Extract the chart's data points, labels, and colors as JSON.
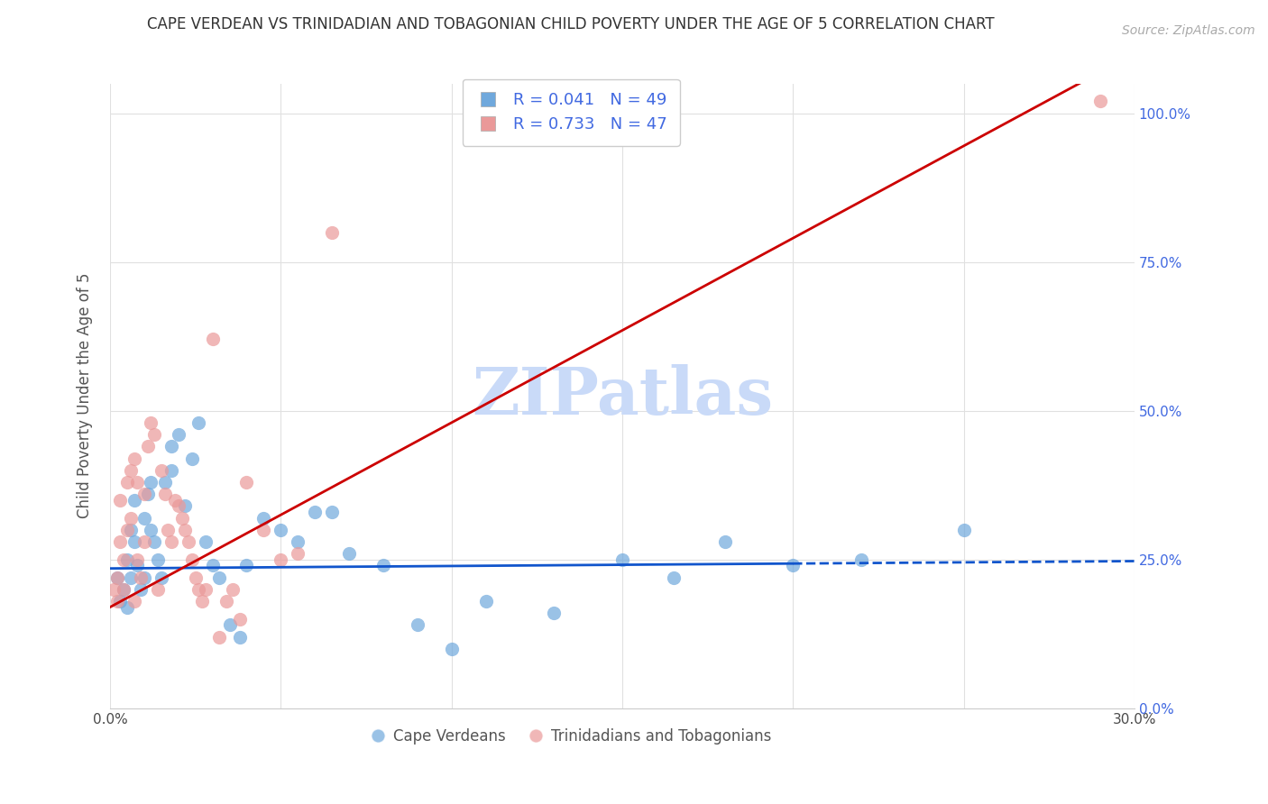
{
  "title": "CAPE VERDEAN VS TRINIDADIAN AND TOBAGONIAN CHILD POVERTY UNDER THE AGE OF 5 CORRELATION CHART",
  "source": "Source: ZipAtlas.com",
  "xlabel_bottom": "",
  "ylabel": "Child Poverty Under the Age of 5",
  "x_min": 0.0,
  "x_max": 0.3,
  "y_min": 0.0,
  "y_max": 1.05,
  "x_ticks": [
    0.0,
    0.05,
    0.1,
    0.15,
    0.2,
    0.25,
    0.3
  ],
  "x_tick_labels": [
    "0.0%",
    "",
    "",
    "",
    "",
    "",
    "30.0%"
  ],
  "y_ticks": [
    0.0,
    0.25,
    0.5,
    0.75,
    1.0
  ],
  "y_tick_labels_left": [
    "",
    "",
    "",
    "",
    ""
  ],
  "y_tick_labels_right": [
    "0.0%",
    "25.0%",
    "50.0%",
    "75.0%",
    "100.0%"
  ],
  "legend_r1": "R = 0.041   N = 49",
  "legend_r2": "R = 0.733   N = 47",
  "legend_label1": "Cape Verdeans",
  "legend_label2": "Trinidadians and Tobagonians",
  "blue_color": "#6fa8dc",
  "pink_color": "#ea9999",
  "blue_line_color": "#1155cc",
  "pink_line_color": "#cc0000",
  "watermark": "ZIPatlas",
  "watermark_color": "#c9daf8",
  "blue_scatter_x": [
    0.002,
    0.003,
    0.004,
    0.005,
    0.005,
    0.006,
    0.006,
    0.007,
    0.007,
    0.008,
    0.009,
    0.01,
    0.01,
    0.011,
    0.012,
    0.012,
    0.013,
    0.014,
    0.015,
    0.016,
    0.018,
    0.018,
    0.02,
    0.022,
    0.024,
    0.026,
    0.028,
    0.03,
    0.032,
    0.035,
    0.038,
    0.04,
    0.045,
    0.05,
    0.055,
    0.06,
    0.065,
    0.07,
    0.08,
    0.09,
    0.1,
    0.11,
    0.13,
    0.15,
    0.165,
    0.18,
    0.2,
    0.22,
    0.25
  ],
  "blue_scatter_y": [
    0.22,
    0.18,
    0.2,
    0.17,
    0.25,
    0.3,
    0.22,
    0.35,
    0.28,
    0.24,
    0.2,
    0.32,
    0.22,
    0.36,
    0.38,
    0.3,
    0.28,
    0.25,
    0.22,
    0.38,
    0.4,
    0.44,
    0.46,
    0.34,
    0.42,
    0.48,
    0.28,
    0.24,
    0.22,
    0.14,
    0.12,
    0.24,
    0.32,
    0.3,
    0.28,
    0.33,
    0.33,
    0.26,
    0.24,
    0.14,
    0.1,
    0.18,
    0.16,
    0.25,
    0.22,
    0.28,
    0.24,
    0.25,
    0.3
  ],
  "pink_scatter_x": [
    0.001,
    0.002,
    0.002,
    0.003,
    0.003,
    0.004,
    0.004,
    0.005,
    0.005,
    0.006,
    0.006,
    0.007,
    0.007,
    0.008,
    0.008,
    0.009,
    0.01,
    0.01,
    0.011,
    0.012,
    0.013,
    0.014,
    0.015,
    0.016,
    0.017,
    0.018,
    0.019,
    0.02,
    0.021,
    0.022,
    0.023,
    0.024,
    0.025,
    0.026,
    0.027,
    0.028,
    0.03,
    0.032,
    0.034,
    0.036,
    0.038,
    0.04,
    0.045,
    0.05,
    0.055,
    0.065,
    0.29
  ],
  "pink_scatter_y": [
    0.2,
    0.22,
    0.18,
    0.28,
    0.35,
    0.2,
    0.25,
    0.38,
    0.3,
    0.4,
    0.32,
    0.18,
    0.42,
    0.38,
    0.25,
    0.22,
    0.36,
    0.28,
    0.44,
    0.48,
    0.46,
    0.2,
    0.4,
    0.36,
    0.3,
    0.28,
    0.35,
    0.34,
    0.32,
    0.3,
    0.28,
    0.25,
    0.22,
    0.2,
    0.18,
    0.2,
    0.62,
    0.12,
    0.18,
    0.2,
    0.15,
    0.38,
    0.3,
    0.25,
    0.26,
    0.8,
    1.02
  ],
  "blue_trend_slope": 0.041,
  "blue_trend_intercept": 0.235,
  "pink_trend_slope": 3.1,
  "pink_trend_intercept": 0.17,
  "grid_color": "#e0e0e0"
}
